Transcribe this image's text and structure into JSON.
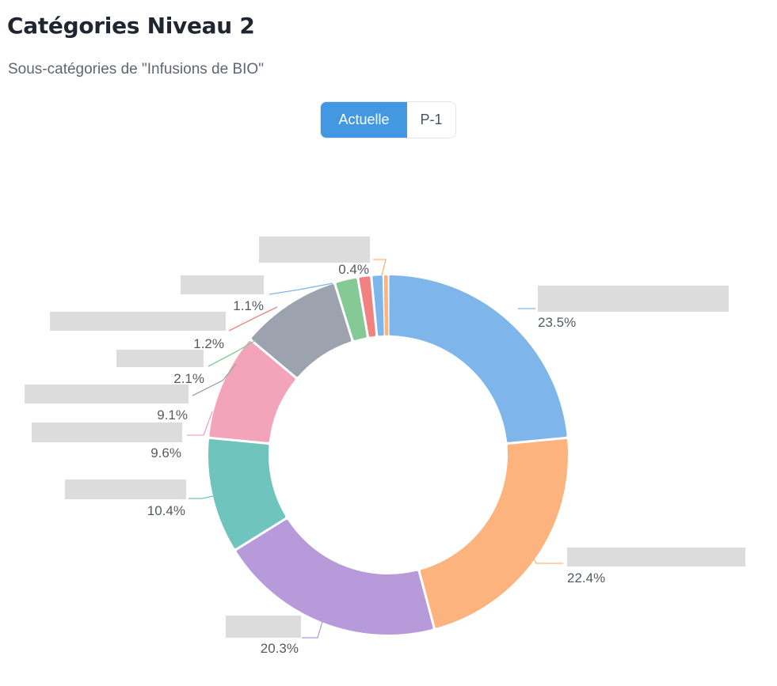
{
  "header": {
    "title": "Catégories Niveau 2",
    "subtitle": "Sous-catégories de \"Infusions de BIO\""
  },
  "period_toggle": {
    "options": [
      "Actuelle",
      "P-1"
    ],
    "selected": "Actuelle"
  },
  "colors": {
    "accent": "#4299e1"
  },
  "chart_data": {
    "type": "pie",
    "donut": true,
    "unit": "%",
    "category_labels": "redacted (blurred in screenshot)",
    "slices": [
      {
        "value": 23.5,
        "label": "23.5%",
        "color": "#7eb6ec"
      },
      {
        "value": 22.4,
        "label": "22.4%",
        "color": "#fcb37d"
      },
      {
        "value": 20.3,
        "label": "20.3%",
        "color": "#b79ad9"
      },
      {
        "value": 10.4,
        "label": "10.4%",
        "color": "#6fc5bd"
      },
      {
        "value": 9.6,
        "label": "9.6%",
        "color": "#f3a4ba"
      },
      {
        "value": 9.1,
        "label": "9.1%",
        "color": "#9ca3ae"
      },
      {
        "value": 2.1,
        "label": "2.1%",
        "color": "#85c996"
      },
      {
        "value": 1.2,
        "label": "1.2%",
        "color": "#f28181"
      },
      {
        "value": 1.1,
        "label": "1.1%",
        "color": "#7eb6ec"
      },
      {
        "value": 0.4,
        "label": "0.4%",
        "color": "#fcb37d"
      }
    ]
  }
}
